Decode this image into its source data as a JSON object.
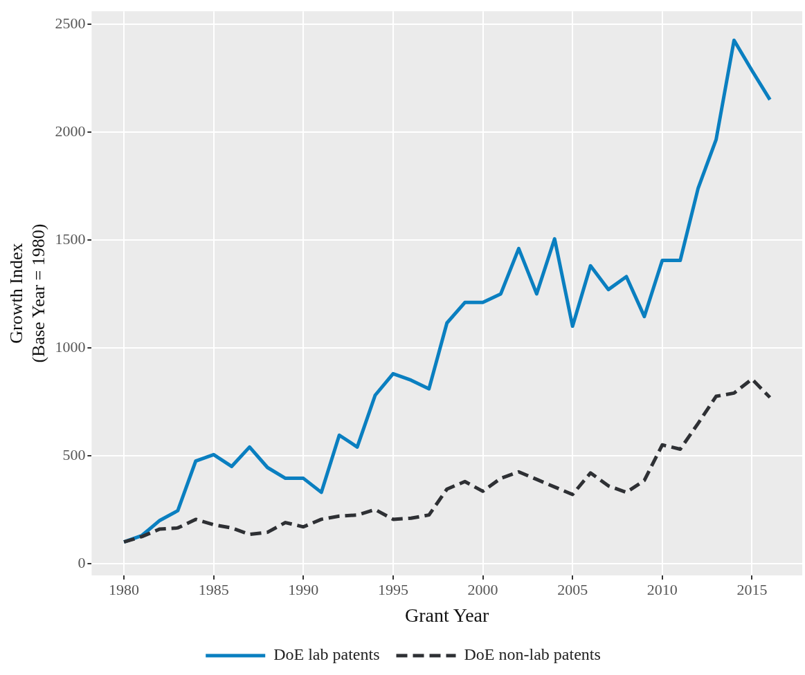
{
  "chart_data": {
    "type": "line",
    "xlabel": "Grant Year",
    "ylabel": "Growth Index\n(Base Year = 1980)",
    "x": [
      1980,
      1981,
      1982,
      1983,
      1984,
      1985,
      1986,
      1987,
      1988,
      1989,
      1990,
      1991,
      1992,
      1993,
      1994,
      1995,
      1996,
      1997,
      1998,
      1999,
      2000,
      2001,
      2002,
      2003,
      2004,
      2005,
      2006,
      2007,
      2008,
      2009,
      2010,
      2011,
      2012,
      2013,
      2014,
      2015,
      2016
    ],
    "series": [
      {
        "name": "DoE lab patents",
        "color": "#0a7fc0",
        "line_style": "solid",
        "values": [
          100,
          130,
          200,
          245,
          475,
          505,
          450,
          540,
          445,
          395,
          395,
          330,
          595,
          540,
          780,
          880,
          850,
          810,
          1115,
          1210,
          1210,
          1250,
          1460,
          1250,
          1505,
          1100,
          1380,
          1270,
          1330,
          1145,
          1405,
          1405,
          1740,
          1965,
          2425,
          2285,
          2150
        ]
      },
      {
        "name": "DoE non-lab patents",
        "color": "#2e3034",
        "line_style": "dashed",
        "values": [
          100,
          125,
          160,
          165,
          205,
          180,
          165,
          135,
          145,
          190,
          170,
          205,
          220,
          225,
          250,
          205,
          210,
          225,
          345,
          380,
          335,
          395,
          425,
          390,
          355,
          320,
          420,
          360,
          330,
          385,
          550,
          530,
          650,
          775,
          790,
          855,
          770
        ]
      }
    ],
    "xlim": [
      1978.2,
      2017.8
    ],
    "xticks": [
      1980,
      1985,
      1990,
      1995,
      2000,
      2005,
      2010,
      2015
    ],
    "ylim": [
      -55,
      2560
    ],
    "yticks": [
      0,
      500,
      1000,
      1500,
      2000,
      2500
    ],
    "grid": true,
    "legend": "bottom"
  }
}
